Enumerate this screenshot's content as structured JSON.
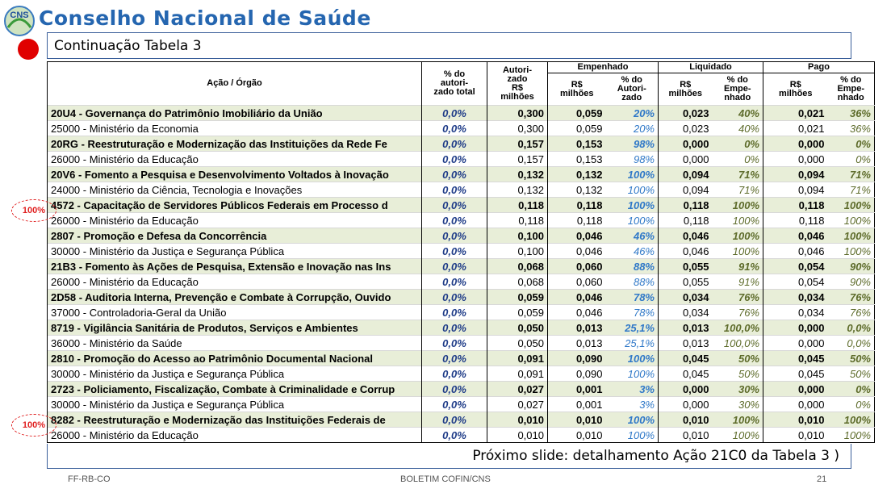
{
  "header": {
    "logo": "CNS",
    "title": "Conselho Nacional de Saúde",
    "subtitle": "Continuação Tabela 3"
  },
  "table": {
    "columns": {
      "acao": "Ação / Órgão",
      "pct_total": [
        "% do",
        "autori-",
        "zado total"
      ],
      "autorizado": [
        "Autori-",
        "zado",
        "R$",
        "milhões"
      ],
      "empenhado": "Empenhado",
      "liquidado": "Liquidado",
      "pago": "Pago",
      "emp_rs": [
        "R$",
        "milhões"
      ],
      "emp_pct": [
        "% do",
        "Autori-",
        "zado"
      ],
      "liq_rs": [
        "R$",
        "milhões"
      ],
      "liq_pct": [
        "% do",
        "Empe-",
        "nhado"
      ],
      "pago_rs": [
        "R$",
        "milhões"
      ],
      "pago_pct": [
        "% do",
        "Empe-",
        "nhado"
      ]
    },
    "groups": [
      {
        "acao": [
          "20U4 - Governança do Patrimônio Imobiliário da União",
          "0,0%",
          "0,300",
          "0,059",
          "20%",
          "0,023",
          "40%",
          "0,021",
          "36%"
        ],
        "orgao": [
          "25000 - Ministério da Economia",
          "0,0%",
          "0,300",
          "0,059",
          "20%",
          "0,023",
          "40%",
          "0,021",
          "36%"
        ]
      },
      {
        "acao": [
          "20RG - Reestruturação e Modernização das Instituições da Rede Fe",
          "0,0%",
          "0,157",
          "0,153",
          "98%",
          "0,000",
          "0%",
          "0,000",
          "0%"
        ],
        "orgao": [
          "26000 - Ministério da Educação",
          "0,0%",
          "0,157",
          "0,153",
          "98%",
          "0,000",
          "0%",
          "0,000",
          "0%"
        ]
      },
      {
        "acao": [
          "20V6 - Fomento a Pesquisa e Desenvolvimento Voltados à Inovação",
          "0,0%",
          "0,132",
          "0,132",
          "100%",
          "0,094",
          "71%",
          "0,094",
          "71%"
        ],
        "orgao": [
          "24000 - Ministério da Ciência, Tecnologia e Inovações",
          "0,0%",
          "0,132",
          "0,132",
          "100%",
          "0,094",
          "71%",
          "0,094",
          "71%"
        ]
      },
      {
        "acao": [
          "4572 - Capacitação de Servidores Públicos Federais em Processo d",
          "0,0%",
          "0,118",
          "0,118",
          "100%",
          "0,118",
          "100%",
          "0,118",
          "100%"
        ],
        "orgao": [
          "26000 - Ministério da Educação",
          "0,0%",
          "0,118",
          "0,118",
          "100%",
          "0,118",
          "100%",
          "0,118",
          "100%"
        ]
      },
      {
        "acao": [
          "2807 - Promoção e Defesa da Concorrência",
          "0,0%",
          "0,100",
          "0,046",
          "46%",
          "0,046",
          "100%",
          "0,046",
          "100%"
        ],
        "orgao": [
          "30000 - Ministério da Justiça e Segurança Pública",
          "0,0%",
          "0,100",
          "0,046",
          "46%",
          "0,046",
          "100%",
          "0,046",
          "100%"
        ]
      },
      {
        "acao": [
          "21B3 - Fomento às Ações de Pesquisa, Extensão e Inovação nas Ins",
          "0,0%",
          "0,068",
          "0,060",
          "88%",
          "0,055",
          "91%",
          "0,054",
          "90%"
        ],
        "orgao": [
          "26000 - Ministério da Educação",
          "0,0%",
          "0,068",
          "0,060",
          "88%",
          "0,055",
          "91%",
          "0,054",
          "90%"
        ]
      },
      {
        "acao": [
          "2D58 - Auditoria Interna, Prevenção e Combate à Corrupção, Ouvido",
          "0,0%",
          "0,059",
          "0,046",
          "78%",
          "0,034",
          "76%",
          "0,034",
          "76%"
        ],
        "orgao": [
          "37000 - Controladoria-Geral da União",
          "0,0%",
          "0,059",
          "0,046",
          "78%",
          "0,034",
          "76%",
          "0,034",
          "76%"
        ]
      },
      {
        "acao": [
          "8719 - Vigilância Sanitária de Produtos, Serviços e Ambientes",
          "0,0%",
          "0,050",
          "0,013",
          "25,1%",
          "0,013",
          "100,0%",
          "0,000",
          "0,0%"
        ],
        "orgao": [
          "36000 - Ministério da Saúde",
          "0,0%",
          "0,050",
          "0,013",
          "25,1%",
          "0,013",
          "100,0%",
          "0,000",
          "0,0%"
        ]
      },
      {
        "acao": [
          "2810 - Promoção do Acesso ao Patrimônio Documental Nacional",
          "0,0%",
          "0,091",
          "0,090",
          "100%",
          "0,045",
          "50%",
          "0,045",
          "50%"
        ],
        "orgao": [
          "30000 - Ministério da Justiça e Segurança Pública",
          "0,0%",
          "0,091",
          "0,090",
          "100%",
          "0,045",
          "50%",
          "0,045",
          "50%"
        ]
      },
      {
        "acao": [
          "2723 - Policiamento, Fiscalização, Combate à Criminalidade e Corrup",
          "0,0%",
          "0,027",
          "0,001",
          "3%",
          "0,000",
          "30%",
          "0,000",
          "0%"
        ],
        "orgao": [
          "30000 - Ministério da Justiça e Segurança Pública",
          "0,0%",
          "0,027",
          "0,001",
          "3%",
          "0,000",
          "30%",
          "0,000",
          "0%"
        ]
      },
      {
        "acao": [
          "8282 - Reestruturação e Modernização das Instituições Federais de",
          "0,0%",
          "0,010",
          "0,010",
          "100%",
          "0,010",
          "100%",
          "0,010",
          "100%"
        ],
        "orgao": [
          "26000 - Ministério da Educação",
          "0,0%",
          "0,010",
          "0,010",
          "100%",
          "0,010",
          "100%",
          "0,010",
          "100%"
        ]
      }
    ]
  },
  "annotations": [
    "100%",
    "100%"
  ],
  "next_slide": "Próximo slide: detalhamento Ação 21C0 da Tabela 3 )",
  "footer": {
    "left": "FF-RB-CO",
    "center": "BOLETIM COFIN/CNS",
    "page": "21"
  }
}
